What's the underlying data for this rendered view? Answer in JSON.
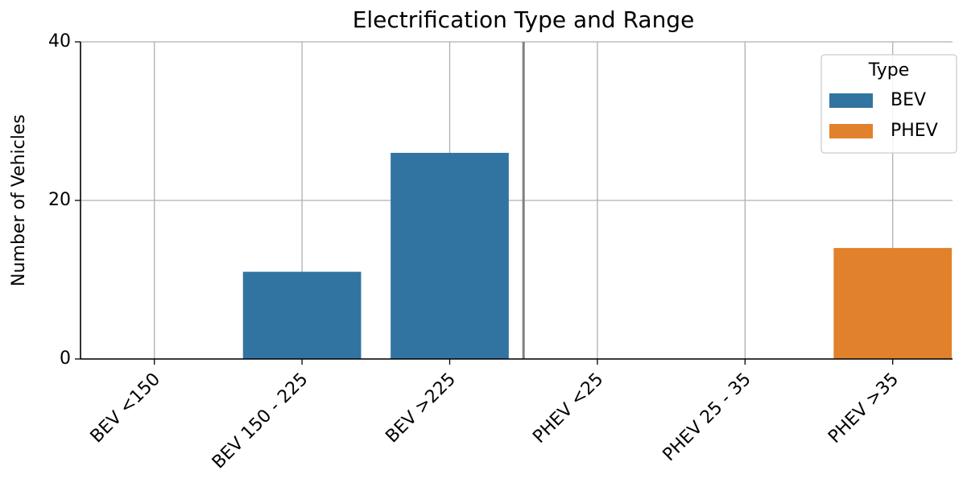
{
  "chart_data": {
    "type": "bar",
    "title": "Electrification Type and Range",
    "ylabel": "Number of Vehicles",
    "categories": [
      "BEV <150",
      "BEV 150 - 225",
      "BEV >225",
      "PHEV <25",
      "PHEV 25 - 35",
      "PHEV >35"
    ],
    "series": [
      {
        "name": "BEV",
        "color": "#3274a1",
        "values": [
          0,
          11,
          26,
          null,
          null,
          null
        ]
      },
      {
        "name": "PHEV",
        "color": "#e1812c",
        "values": [
          null,
          null,
          null,
          0,
          0,
          14
        ]
      }
    ],
    "ylim": [
      0,
      40
    ],
    "yticks": [
      0,
      20,
      40
    ],
    "grid": true,
    "legend_title": "Type",
    "legend_loc": "upper right"
  }
}
